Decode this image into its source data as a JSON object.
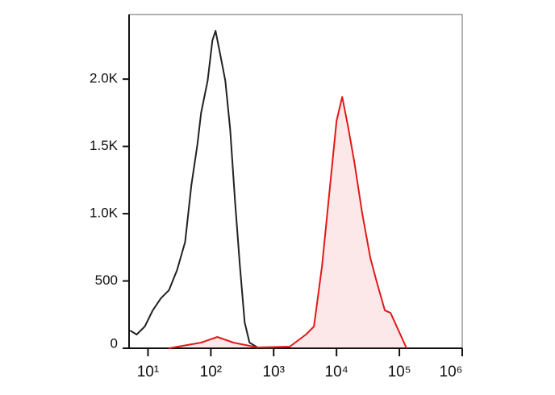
{
  "chart_data": {
    "type": "histogram-overlay",
    "xscale": "log",
    "xlim": [
      5,
      1000000
    ],
    "xticks": [
      {
        "value": 10,
        "label": "10¹"
      },
      {
        "value": 100,
        "label": "10²"
      },
      {
        "value": 1000,
        "label": "10³"
      },
      {
        "value": 10000,
        "label": "10⁴"
      },
      {
        "value": 100000,
        "label": "10⁵"
      },
      {
        "value": 1000000,
        "label": "10⁶"
      }
    ],
    "ylim": [
      0,
      2480
    ],
    "yticks": [
      0,
      500,
      {
        "value": 1000,
        "label": "1.0K"
      },
      {
        "value": 1500,
        "label": "1.5K"
      },
      {
        "value": 2000,
        "label": "2.0K"
      }
    ],
    "series": [
      {
        "color": "#222222",
        "fill": false,
        "x": [
          5.2,
          6.6,
          8.9,
          11.9,
          16,
          21.5,
          29,
          39,
          49,
          61,
          70,
          89,
          106,
          119,
          143,
          170,
          203,
          243,
          290,
          345,
          412,
          554,
          1000
        ],
        "values": [
          132,
          102,
          162,
          281,
          371,
          431,
          581,
          790,
          1210,
          1509,
          1749,
          1988,
          2287,
          2359,
          2168,
          1988,
          1629,
          1090,
          611,
          192,
          42,
          6,
          0
        ]
      },
      {
        "color": "#e0191b",
        "fill": true,
        "x": [
          21.5,
          70,
          127,
          229,
          554,
          1803,
          3258,
          4375,
          5875,
          7888,
          10000,
          12300,
          15100,
          19100,
          25700,
          34500,
          43700,
          58800,
          72300,
          130000
        ],
        "values": [
          0,
          42,
          84,
          42,
          6,
          12,
          102,
          162,
          611,
          1210,
          1689,
          1868,
          1659,
          1389,
          1000,
          671,
          491,
          281,
          263,
          0
        ]
      }
    ]
  }
}
